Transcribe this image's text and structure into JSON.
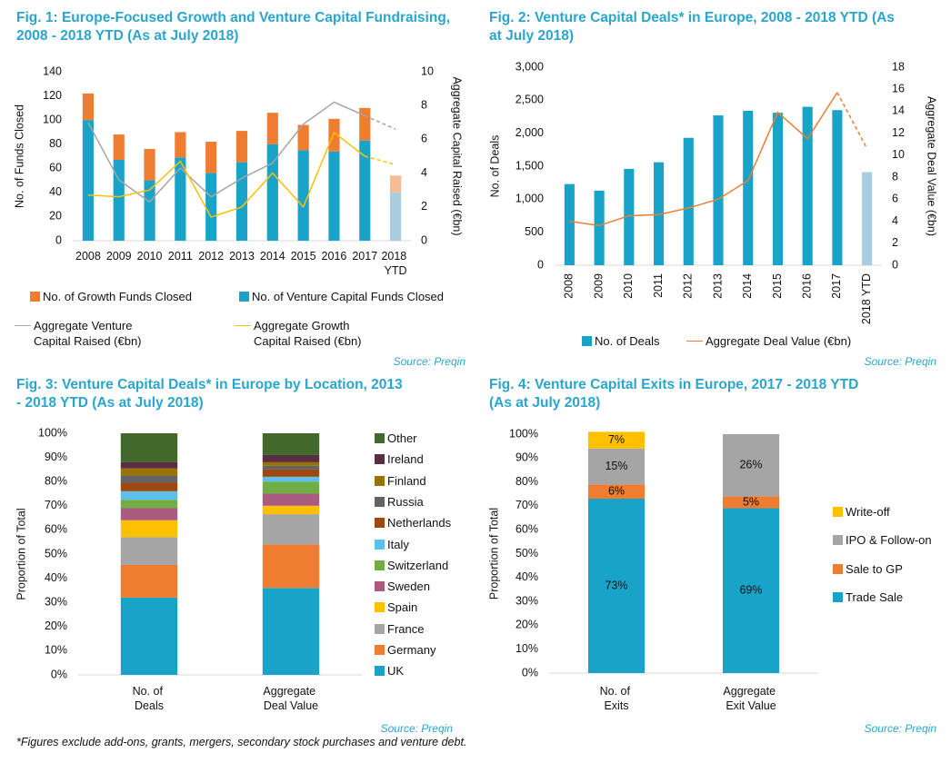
{
  "footnote": "*Figures exclude add-ons, grants, mergers, secondary stock purchases and venture debt.",
  "chart_data": [
    {
      "type": "bar",
      "stacked": true,
      "title": "Fig. 1: Europe-Focused Growth and Venture Capital Fundraising, 2008 - 2018 YTD (As at July 2018)",
      "source": "Source: Preqin",
      "y_label": "No. of Funds Closed",
      "y2_label": "Aggregate Capital Raised (€bn)",
      "categories": [
        "2008",
        "2009",
        "2010",
        "2011",
        "2012",
        "2013",
        "2014",
        "2015",
        "2016",
        "2017",
        "2018 YTD"
      ],
      "series": [
        {
          "name": "No. of Venture Capital Funds Closed",
          "type": "bar",
          "color": "#1aa3c8",
          "last_color": "#a9cde0",
          "values": [
            100,
            67,
            50,
            69,
            56,
            65,
            80,
            75,
            74,
            83,
            40
          ]
        },
        {
          "name": "No. of Growth Funds Closed",
          "type": "bar",
          "color": "#ee7d31",
          "last_color": "#f6bc96",
          "values": [
            22,
            21,
            26,
            21,
            26,
            26,
            26,
            21,
            27,
            27,
            14
          ]
        },
        {
          "name": "Aggregate Venture Capital Raised (€bn)",
          "type": "line",
          "axis": "y2",
          "color": "#a5a5a5",
          "dashed_last": true,
          "values": [
            7.0,
            3.6,
            2.3,
            4.3,
            2.6,
            3.7,
            4.6,
            6.9,
            8.2,
            7.4,
            6.6
          ]
        },
        {
          "name": "Aggregate Growth Capital Raised (€bn)",
          "type": "line",
          "axis": "y2",
          "color": "#ffc000",
          "dashed_last": true,
          "values": [
            2.7,
            2.6,
            3.0,
            4.7,
            1.4,
            2.0,
            4.0,
            2.0,
            6.4,
            5.0,
            4.5
          ]
        }
      ],
      "ylim": [
        0,
        140
      ],
      "yticks": [
        0,
        20,
        40,
        60,
        80,
        100,
        120,
        140
      ],
      "y2lim": [
        0,
        10
      ],
      "y2ticks": [
        0,
        2,
        4,
        6,
        8,
        10
      ],
      "grid": false
    },
    {
      "type": "bar",
      "stacked": false,
      "title": "Fig. 2: Venture Capital Deals* in Europe, 2008 - 2018 YTD (As at July 2018)",
      "source": "Source: Preqin",
      "y_label": "No. of Deals",
      "y2_label": "Aggregate Deal Value (€bn)",
      "categories": [
        "2008",
        "2009",
        "2010",
        "2011",
        "2012",
        "2013",
        "2014",
        "2015",
        "2016",
        "2017",
        "2018 YTD"
      ],
      "series": [
        {
          "name": "No. of Deals",
          "type": "bar",
          "color": "#1aa3c8",
          "last_color": "#a9cde0",
          "values": [
            1230,
            1130,
            1460,
            1560,
            1930,
            2270,
            2340,
            2310,
            2400,
            2350,
            1410
          ]
        },
        {
          "name": "Aggregate Deal Value (€bn)",
          "type": "line",
          "axis": "y2",
          "color": "#ee7d31",
          "dashed_last": true,
          "values": [
            4.0,
            3.6,
            4.5,
            4.6,
            5.2,
            6.0,
            7.7,
            13.9,
            11.5,
            15.7,
            10.6
          ]
        }
      ],
      "ylim": [
        0,
        3000
      ],
      "yticks": [
        0,
        500,
        {
          "value": 1000,
          "label": "1,000"
        },
        {
          "value": 1500,
          "label": "1,500"
        },
        {
          "value": 2000,
          "label": "2,000"
        },
        {
          "value": 2500,
          "label": "2,500"
        },
        {
          "value": 3000,
          "label": "3,000"
        }
      ],
      "y2lim": [
        0,
        18
      ],
      "y2ticks": [
        0,
        2,
        4,
        6,
        8,
        10,
        12,
        14,
        16,
        18
      ],
      "grid": false
    },
    {
      "type": "bar",
      "stacked": true,
      "title": "Fig. 3: Venture Capital Deals* in Europe by Location, 2013 - 2018 YTD (As at July 2018)",
      "source": "Source: Preqin",
      "y_label": "Proportion of Total",
      "categories": [
        "No. of Deals",
        "Aggregate Deal Value"
      ],
      "series": [
        {
          "name": "UK",
          "type": "bar",
          "color": "#1aa3c8",
          "values": [
            32,
            36
          ]
        },
        {
          "name": "Germany",
          "type": "bar",
          "color": "#ee7d31",
          "values": [
            13.5,
            18
          ]
        },
        {
          "name": "France",
          "type": "bar",
          "color": "#a5a5a5",
          "values": [
            11.5,
            12.5
          ]
        },
        {
          "name": "Spain",
          "type": "bar",
          "color": "#ffc000",
          "values": [
            7,
            3.5
          ]
        },
        {
          "name": "Sweden",
          "type": "bar",
          "color": "#a95c7f",
          "values": [
            5,
            5
          ]
        },
        {
          "name": "Switzerland",
          "type": "bar",
          "color": "#70ad47",
          "values": [
            3.5,
            5
          ]
        },
        {
          "name": "Italy",
          "type": "bar",
          "color": "#5bc0eb",
          "values": [
            3.5,
            2
          ]
        },
        {
          "name": "Netherlands",
          "type": "bar",
          "color": "#9e480e",
          "values": [
            3.5,
            3
          ]
        },
        {
          "name": "Russia",
          "type": "bar",
          "color": "#636363",
          "values": [
            3,
            1.5
          ]
        },
        {
          "name": "Finland",
          "type": "bar",
          "color": "#997300",
          "values": [
            3,
            1.5
          ]
        },
        {
          "name": "Ireland",
          "type": "bar",
          "color": "#5a2d43",
          "values": [
            2.5,
            3
          ]
        },
        {
          "name": "Other",
          "type": "bar",
          "color": "#43682b",
          "values": [
            12,
            9
          ]
        }
      ],
      "ylim": [
        0,
        100
      ],
      "yticks": [
        {
          "value": 0,
          "label": "0%"
        },
        {
          "value": 10,
          "label": "10%"
        },
        {
          "value": 20,
          "label": "20%"
        },
        {
          "value": 30,
          "label": "30%"
        },
        {
          "value": 40,
          "label": "40%"
        },
        {
          "value": 50,
          "label": "50%"
        },
        {
          "value": 60,
          "label": "60%"
        },
        {
          "value": 70,
          "label": "70%"
        },
        {
          "value": 80,
          "label": "80%"
        },
        {
          "value": 90,
          "label": "90%"
        },
        {
          "value": 100,
          "label": "100%"
        }
      ],
      "grid": false
    },
    {
      "type": "bar",
      "stacked": true,
      "title": "Fig. 4: Venture Capital Exits in Europe, 2017 - 2018 YTD (As at July 2018)",
      "source": "Source: Preqin",
      "y_label": "Proportion of Total",
      "categories": [
        "No. of Exits",
        "Aggregate Exit Value"
      ],
      "series": [
        {
          "name": "Trade Sale",
          "type": "bar",
          "color": "#1aa3c8",
          "values": [
            73,
            69
          ],
          "value_labels": [
            "73%",
            "69%"
          ]
        },
        {
          "name": "Sale to GP",
          "type": "bar",
          "color": "#ee7d31",
          "values": [
            6,
            5
          ],
          "value_labels": [
            "6%",
            "5%"
          ]
        },
        {
          "name": "IPO & Follow-on",
          "type": "bar",
          "color": "#a5a5a5",
          "values": [
            15,
            26
          ],
          "value_labels": [
            "15%",
            "26%"
          ]
        },
        {
          "name": "Write-off",
          "type": "bar",
          "color": "#ffc000",
          "values": [
            7,
            null
          ],
          "value_labels": [
            "7%",
            null
          ]
        }
      ],
      "ylim": [
        0,
        100
      ],
      "yticks": [
        {
          "value": 0,
          "label": "0%"
        },
        {
          "value": 10,
          "label": "10%"
        },
        {
          "value": 20,
          "label": "20%"
        },
        {
          "value": 30,
          "label": "30%"
        },
        {
          "value": 40,
          "label": "40%"
        },
        {
          "value": 50,
          "label": "50%"
        },
        {
          "value": 60,
          "label": "60%"
        },
        {
          "value": 70,
          "label": "70%"
        },
        {
          "value": 80,
          "label": "80%"
        },
        {
          "value": 90,
          "label": "90%"
        },
        {
          "value": 100,
          "label": "100%"
        }
      ],
      "grid": false
    }
  ]
}
